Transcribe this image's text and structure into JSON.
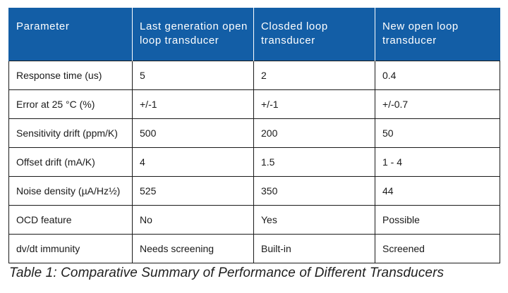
{
  "table": {
    "headers": [
      "Parameter",
      "Last generation open loop transducer",
      "Closded loop transducer",
      "New open loop transducer"
    ],
    "rows": [
      [
        "Response time (us)",
        "5",
        "2",
        "0.4"
      ],
      [
        "Error at 25 °C (%)",
        "+/-1",
        "+/-1",
        "+/-0.7"
      ],
      [
        "Sensitivity drift (ppm/K)",
        "500",
        "200",
        "50"
      ],
      [
        "Offset drift (mA/K)",
        "4",
        "1.5",
        "1 - 4"
      ],
      [
        "Noise density (µA/Hz½)",
        "525",
        "350",
        "44"
      ],
      [
        "OCD feature",
        "No",
        "Yes",
        "Possible"
      ],
      [
        "dv/dt immunity",
        "Needs screening",
        "Built-in",
        "Screened"
      ]
    ]
  },
  "caption": "Table 1: Comparative Summary of Performance of Different Transducers",
  "colors": {
    "header_bg": "#135ea6",
    "header_text": "#ffffff",
    "border": "#1a1a1a"
  }
}
